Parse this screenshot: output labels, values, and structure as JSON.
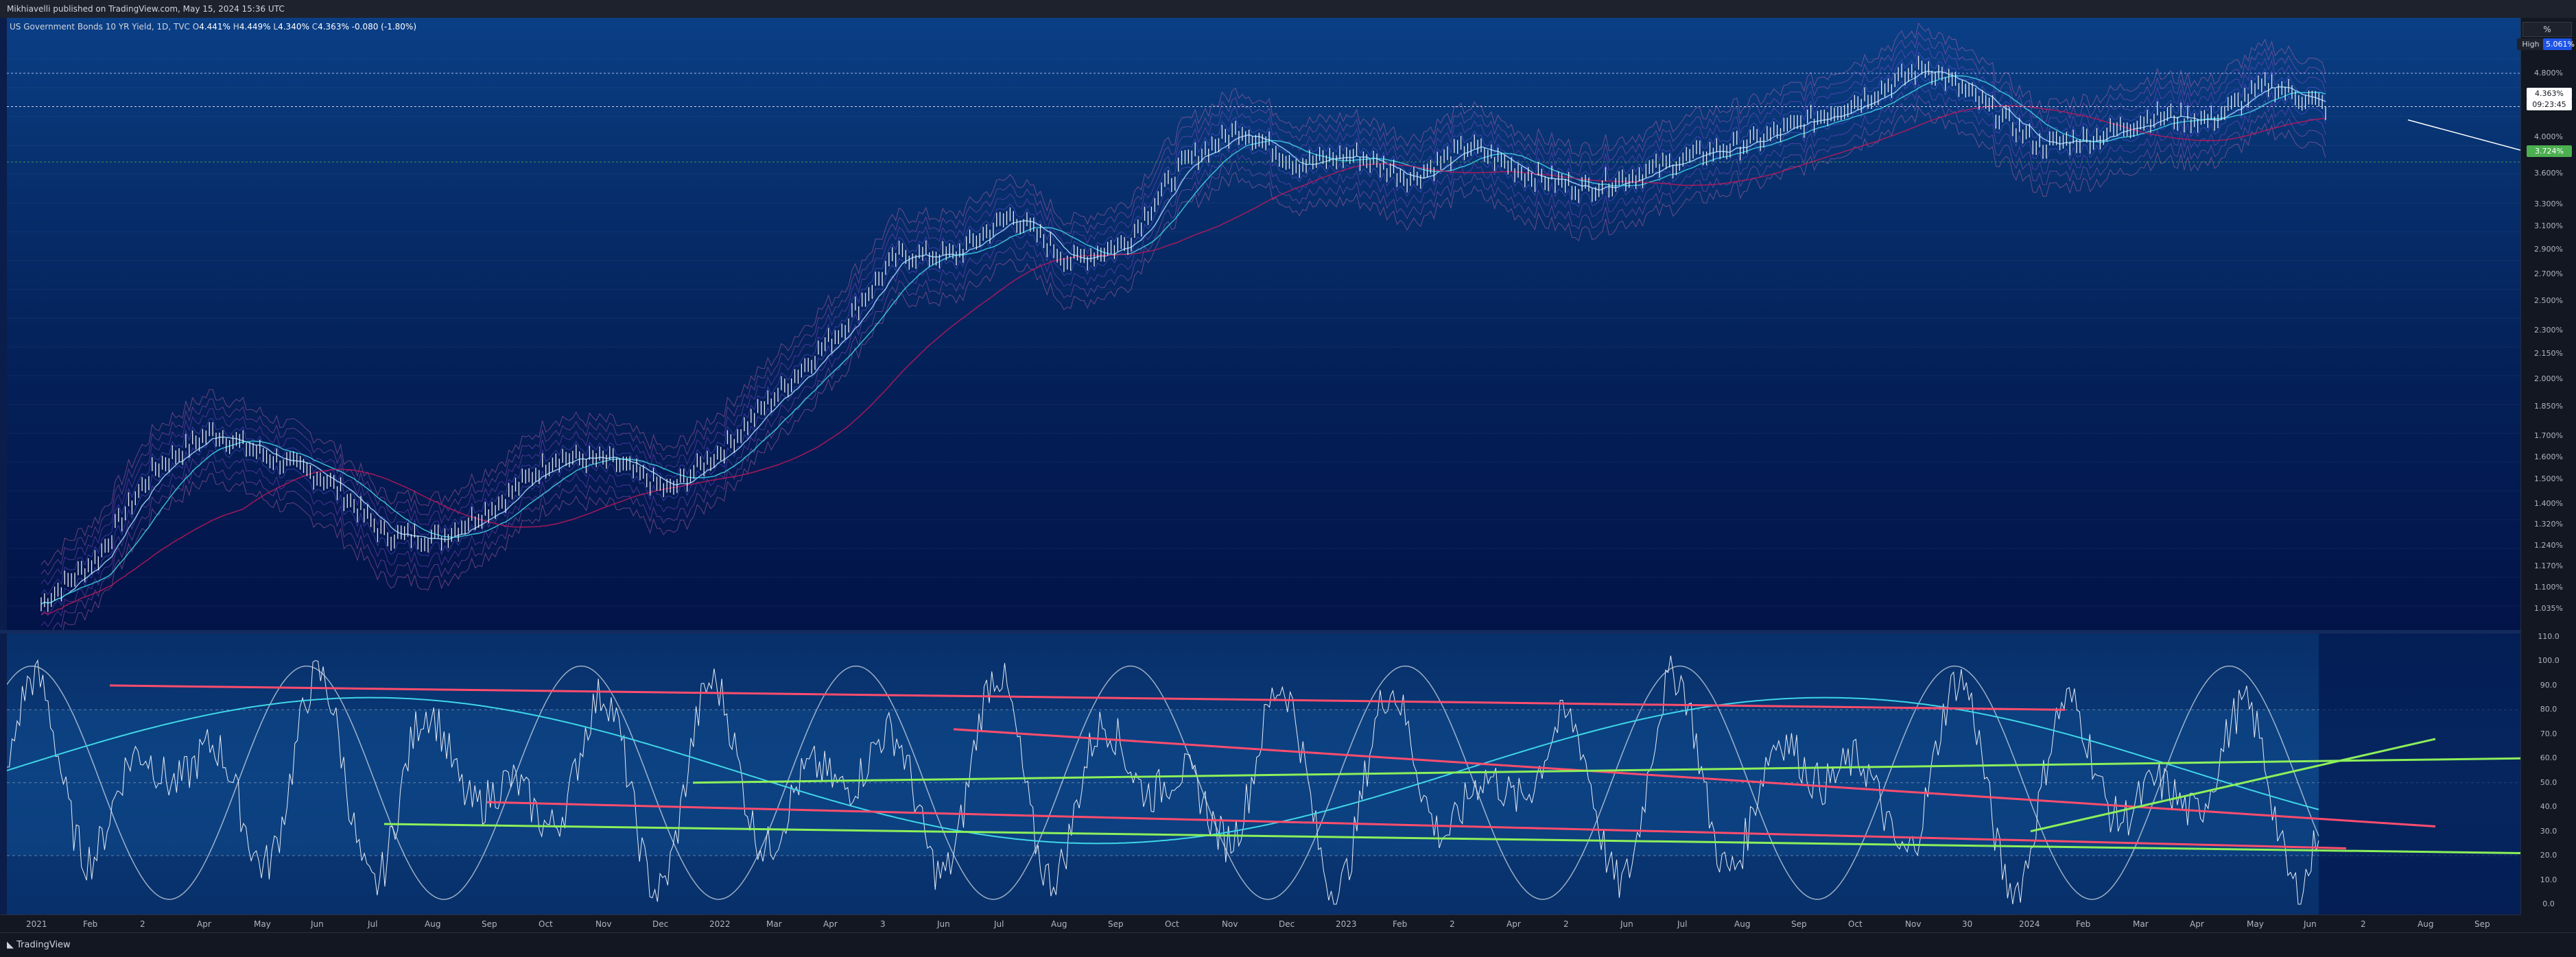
{
  "header": {
    "published_text": "Mikhiavelli published on TradingView.com, May 15, 2024 15:36 UTC"
  },
  "legend": {
    "symbol": "US Government Bonds 10 YR Yield, 1D, TVC",
    "open_label": "O",
    "open": "4.441%",
    "high_label": "H",
    "high": "4.449%",
    "low_label": "L",
    "low": "4.340%",
    "close_label": "C",
    "close": "4.363%",
    "change": "-0.080 (-1.80%)"
  },
  "price_axis": {
    "ticks": [
      "4.800%",
      "4.000%",
      "3.600%",
      "3.300%",
      "3.100%",
      "2.900%",
      "2.700%",
      "2.500%",
      "2.300%",
      "2.150%",
      "2.000%",
      "1.850%",
      "1.700%",
      "1.600%",
      "1.500%",
      "1.400%",
      "1.320%",
      "1.240%",
      "1.170%",
      "1.100%",
      "1.035%"
    ],
    "currency_button": "%",
    "high_label": "High",
    "high_value": "5.061%",
    "last_value": "4.363%",
    "countdown": "09:23:45",
    "level_value": "3.724%"
  },
  "osc_axis": {
    "ticks": [
      "110.0",
      "100.0",
      "90.0",
      "80.0",
      "70.0",
      "60.0",
      "50.0",
      "40.0",
      "30.0",
      "20.0",
      "10.0",
      "0.0"
    ]
  },
  "time_axis": {
    "labels": [
      "2021",
      "Feb",
      "2",
      "Apr",
      "May",
      "Jun",
      "Jul",
      "Aug",
      "Sep",
      "Oct",
      "Nov",
      "Dec",
      "2022",
      "Mar",
      "Apr",
      "3",
      "Jun",
      "Jul",
      "Aug",
      "Sep",
      "Oct",
      "Nov",
      "Dec",
      "2023",
      "Feb",
      "2",
      "Apr",
      "2",
      "Jun",
      "Jul",
      "Aug",
      "Sep",
      "Oct",
      "Nov",
      "30",
      "2024",
      "Feb",
      "Mar",
      "Apr",
      "May",
      "Jun",
      "2",
      "Aug",
      "Sep"
    ]
  },
  "footer": {
    "brand": "TradingView"
  },
  "colors": {
    "background": "#131722",
    "pane_top": "#0a3f86",
    "pane_bottom": "#021348",
    "price_bars": "#e6ebf5",
    "last_price_badge": "#ffffff",
    "level_badge": "#4caf50",
    "trend_red": "#ff4d6d",
    "trend_green": "#8cf05a",
    "ma_cyan": "#3fd6e8",
    "ma_magenta": "#c2185b"
  },
  "chart_data": {
    "type": "line",
    "title": "US Government Bonds 10 YR Yield, 1D, TVC",
    "xlabel": "",
    "ylabel": "",
    "scale": "log",
    "x": [
      "2021-01",
      "2021-02",
      "2021-03",
      "2021-04",
      "2021-05",
      "2021-06",
      "2021-07",
      "2021-08",
      "2021-09",
      "2021-10",
      "2021-11",
      "2021-12",
      "2022-01",
      "2022-02",
      "2022-03",
      "2022-04",
      "2022-05",
      "2022-06",
      "2022-07",
      "2022-08",
      "2022-09",
      "2022-10",
      "2022-11",
      "2022-12",
      "2023-01",
      "2023-02",
      "2023-03",
      "2023-04",
      "2023-05",
      "2023-06",
      "2023-07",
      "2023-08",
      "2023-09",
      "2023-10",
      "2023-11",
      "2023-12",
      "2024-01",
      "2024-02",
      "2024-03",
      "2024-04",
      "2024-05"
    ],
    "series": [
      {
        "values": [
          1.05,
          1.2,
          1.55,
          1.72,
          1.6,
          1.5,
          1.28,
          1.27,
          1.4,
          1.6,
          1.58,
          1.45,
          1.65,
          1.95,
          2.3,
          2.85,
          2.85,
          3.2,
          2.8,
          2.95,
          3.7,
          4.1,
          3.7,
          3.8,
          3.55,
          3.9,
          3.6,
          3.45,
          3.6,
          3.8,
          3.95,
          4.2,
          4.5,
          4.9,
          4.4,
          3.9,
          4.0,
          4.25,
          4.2,
          4.65,
          4.363
        ]
      }
    ],
    "ylim": [
      1.0,
      5.1
    ],
    "oscillator": {
      "ylim": [
        0,
        110
      ],
      "levels": [
        20,
        50,
        80
      ]
    }
  }
}
